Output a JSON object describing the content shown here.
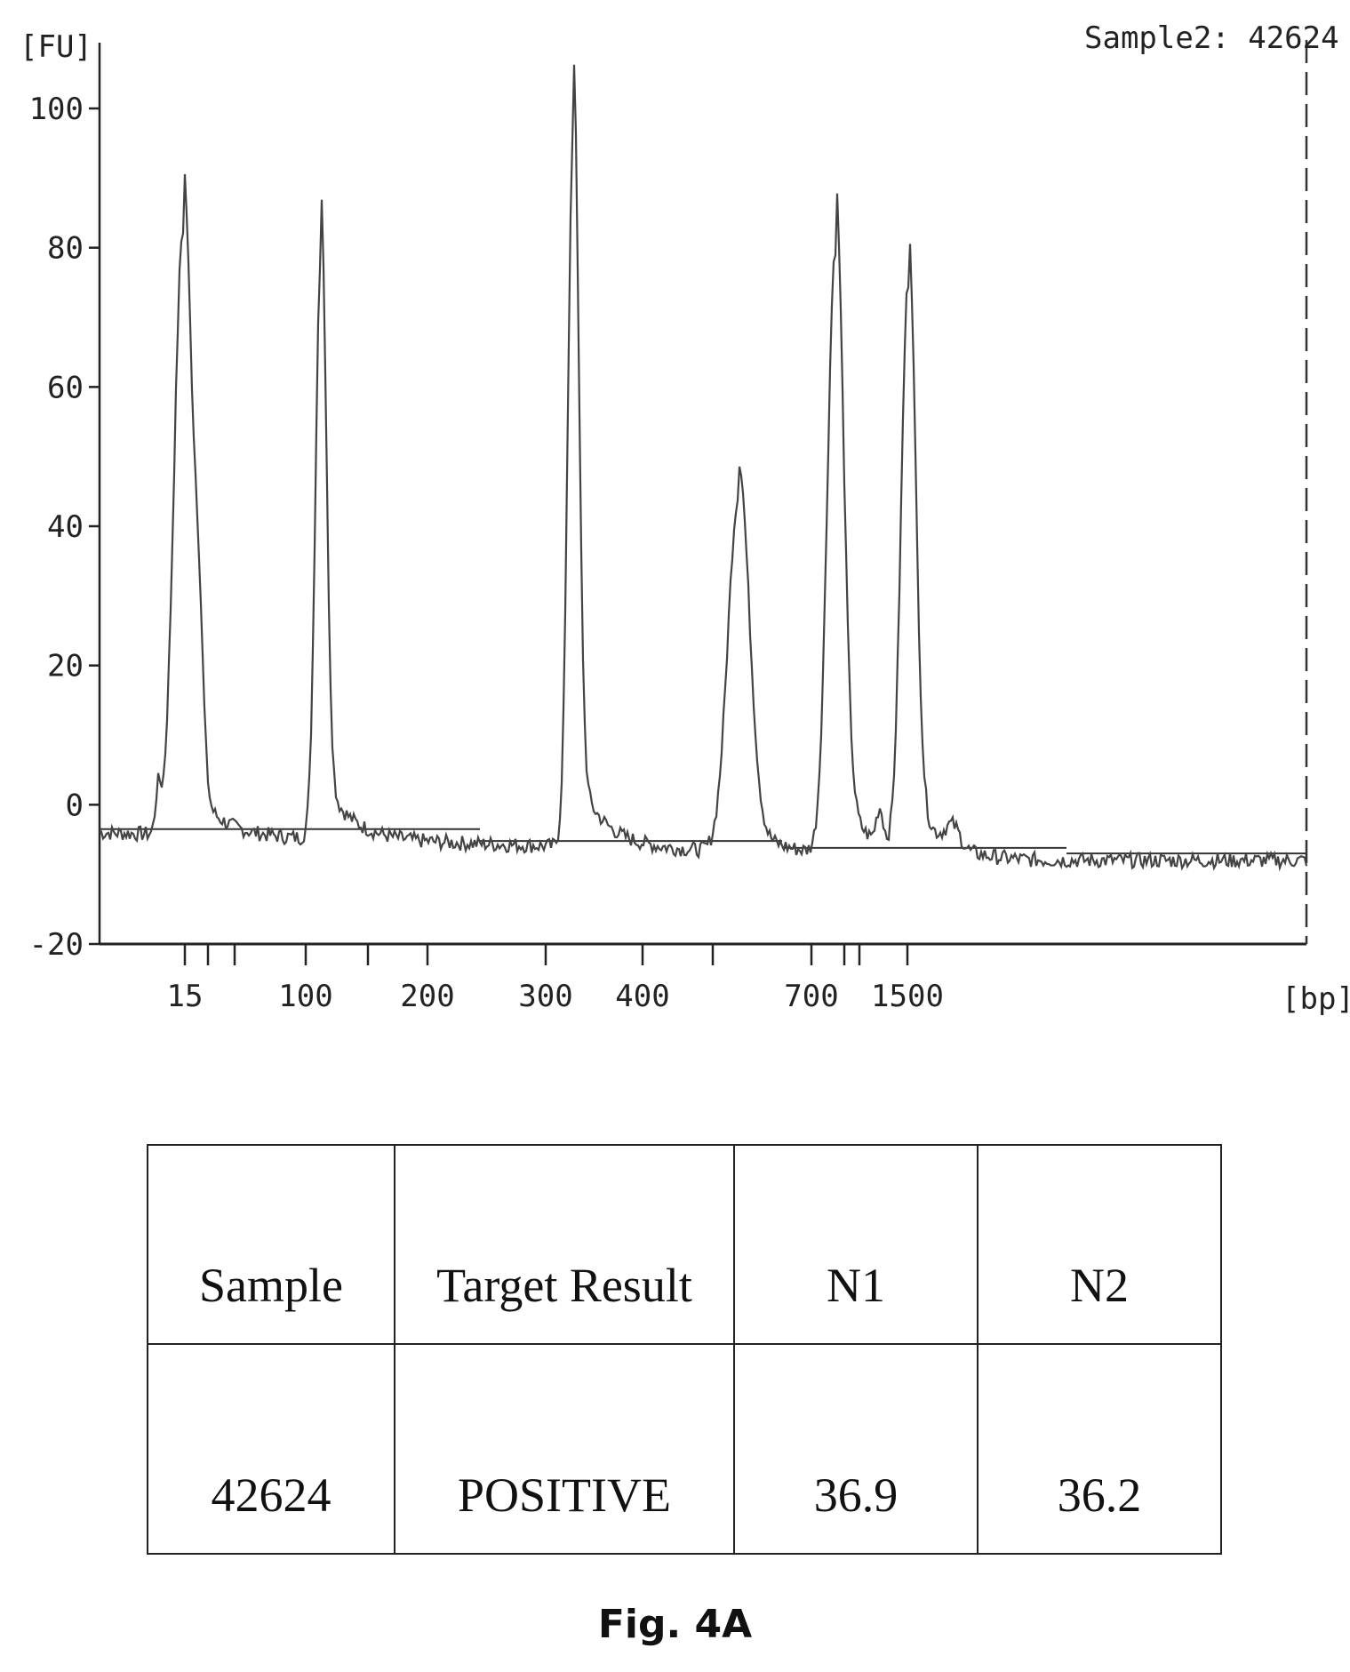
{
  "chart_data": {
    "type": "line",
    "sample_label": "Sample2: 42624",
    "ylabel": "[FU]",
    "xlabel": "[bp]",
    "ylim": [
      -20,
      100
    ],
    "y_ticks": [
      -20,
      0,
      20,
      40,
      60,
      80,
      100
    ],
    "x_tick_labels": [
      "15",
      "100",
      "200",
      "300",
      "400",
      "700",
      "1500"
    ],
    "grid": false,
    "series": [
      {
        "peaks": [
          {
            "x_label": "15",
            "fu": 83
          },
          {
            "x_label": "100",
            "fu": 80
          },
          {
            "x_label": "300",
            "fu": 99
          },
          {
            "fu": 47
          },
          {
            "x_label": "700",
            "fu": 83
          },
          {
            "x_label": "1500",
            "fu": 78
          }
        ],
        "baseline_fu": [
          -4,
          -8
        ]
      }
    ]
  },
  "table": {
    "headers": [
      "Sample",
      "Target Result",
      "N1",
      "N2"
    ],
    "rows": [
      [
        "42624",
        "POSITIVE",
        "36.9",
        "36.2"
      ]
    ]
  },
  "caption": "Fig. 4A"
}
